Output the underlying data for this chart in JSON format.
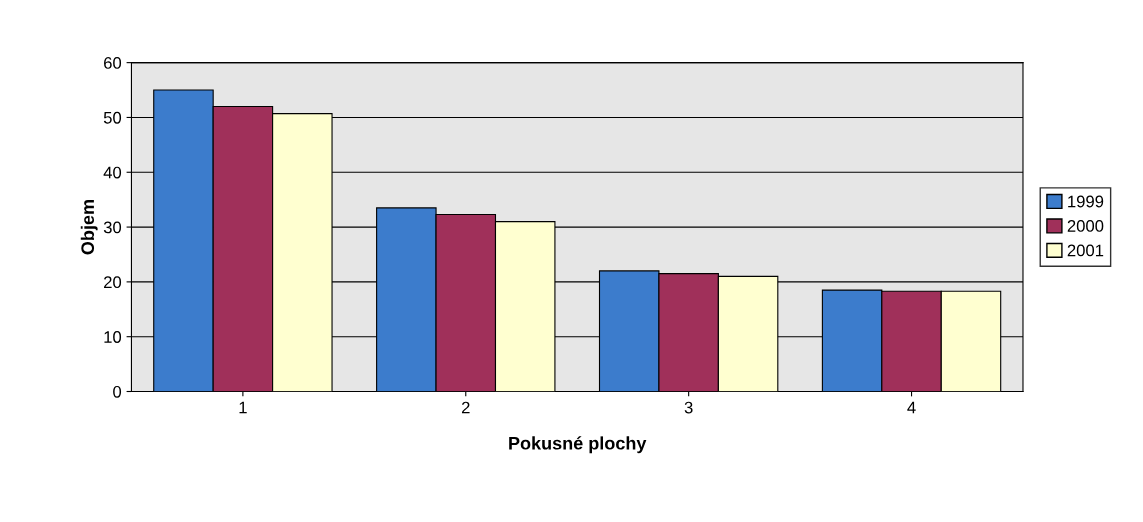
{
  "chart_data": {
    "type": "bar",
    "xlabel": "Pokusné plochy",
    "ylabel": "Objem",
    "categories": [
      "1",
      "2",
      "3",
      "4"
    ],
    "series": [
      {
        "name": "1999",
        "color": "#3c7ccc",
        "values": [
          55,
          33.5,
          22,
          18.5
        ]
      },
      {
        "name": "2000",
        "color": "#a0305a",
        "values": [
          52,
          32.3,
          21.5,
          18.3
        ]
      },
      {
        "name": "2001",
        "color": "#ffffd0",
        "values": [
          50.7,
          31,
          21,
          18.3
        ]
      }
    ],
    "ylim": [
      0,
      60
    ],
    "yticks": [
      0,
      10,
      20,
      30,
      40,
      50,
      60
    ],
    "grid": "y",
    "legend": "right"
  }
}
